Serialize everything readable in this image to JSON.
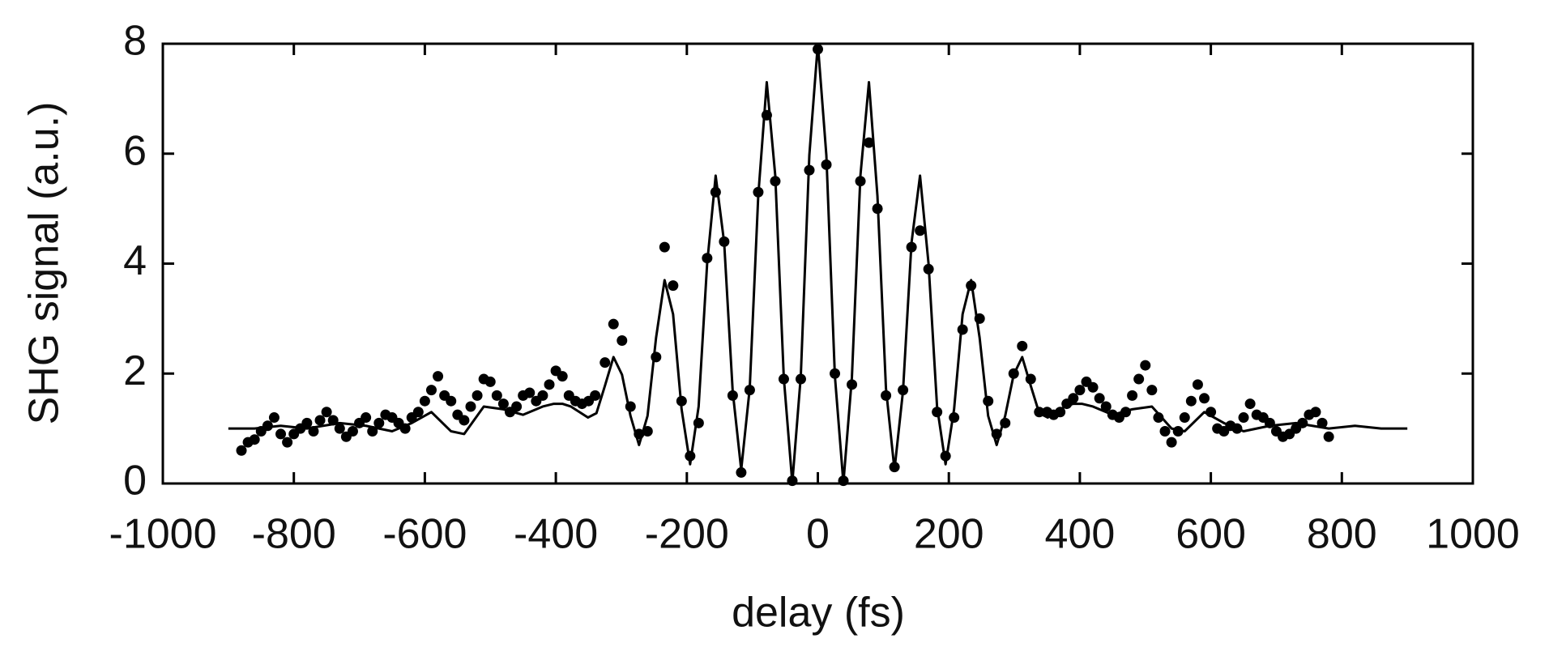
{
  "chart_data": {
    "type": "scatter",
    "x_label": "delay (fs)",
    "y_label": "SHG signal (a.u.)",
    "xlim": [
      -1000,
      1000
    ],
    "xticks": [
      -1000,
      -800,
      -600,
      -400,
      -200,
      0,
      200,
      400,
      600,
      800,
      1000
    ],
    "ylim": [
      0,
      8
    ],
    "yticks": [
      0,
      2,
      4,
      6,
      8
    ],
    "series": [
      {
        "type": "scatter",
        "color": "#000000",
        "x": [
          -880,
          -870,
          -860,
          -850,
          -840,
          -830,
          -820,
          -810,
          -800,
          -790,
          -780,
          -770,
          -760,
          -750,
          -740,
          -730,
          -720,
          -710,
          -700,
          -690,
          -680,
          -670,
          -660,
          -650,
          -640,
          -630,
          -620,
          -610,
          -600,
          -590,
          -580,
          -570,
          -560,
          -550,
          -540,
          -530,
          -520,
          -510,
          -500,
          -490,
          -480,
          -470,
          -460,
          -450,
          -440,
          -430,
          -420,
          -410,
          -400,
          -390,
          -380,
          -370,
          -360,
          -350,
          -340,
          -325,
          -312,
          -299,
          -286,
          -273,
          -260,
          -247,
          -234,
          -221,
          -208,
          -195,
          -182,
          -169,
          -156,
          -143,
          -130,
          -117,
          -104,
          -91,
          -78,
          -65,
          -52,
          -39,
          -26,
          -13,
          0,
          13,
          26,
          39,
          52,
          65,
          78,
          91,
          104,
          117,
          130,
          143,
          156,
          169,
          182,
          195,
          208,
          221,
          234,
          247,
          260,
          273,
          286,
          299,
          312,
          325,
          338,
          350,
          360,
          370,
          380,
          390,
          400,
          410,
          420,
          430,
          440,
          450,
          460,
          470,
          480,
          490,
          500,
          510,
          520,
          530,
          540,
          550,
          560,
          570,
          580,
          590,
          600,
          610,
          620,
          630,
          640,
          650,
          660,
          670,
          680,
          690,
          700,
          710,
          720,
          730,
          740,
          750,
          760,
          770,
          780
        ],
        "values": [
          0.6,
          0.75,
          0.8,
          0.95,
          1.05,
          1.2,
          0.9,
          0.75,
          0.9,
          1.0,
          1.1,
          0.95,
          1.15,
          1.3,
          1.15,
          1.0,
          0.85,
          0.95,
          1.1,
          1.2,
          0.95,
          1.1,
          1.25,
          1.2,
          1.1,
          1.0,
          1.2,
          1.3,
          1.5,
          1.7,
          1.95,
          1.6,
          1.5,
          1.25,
          1.15,
          1.4,
          1.6,
          1.9,
          1.85,
          1.6,
          1.45,
          1.3,
          1.4,
          1.6,
          1.65,
          1.5,
          1.6,
          1.8,
          2.05,
          1.95,
          1.6,
          1.5,
          1.45,
          1.5,
          1.6,
          2.2,
          2.9,
          2.6,
          1.4,
          0.9,
          0.95,
          2.3,
          4.3,
          3.6,
          1.5,
          0.5,
          1.1,
          4.1,
          5.3,
          4.4,
          1.6,
          0.2,
          1.7,
          5.3,
          6.7,
          5.5,
          1.9,
          0.05,
          1.9,
          5.7,
          7.9,
          5.8,
          2.0,
          0.05,
          1.8,
          5.5,
          6.2,
          5.0,
          1.6,
          0.3,
          1.7,
          4.3,
          4.6,
          3.9,
          1.3,
          0.5,
          1.2,
          2.8,
          3.6,
          3.0,
          1.5,
          0.9,
          1.1,
          2.0,
          2.5,
          1.9,
          1.3,
          1.3,
          1.25,
          1.3,
          1.45,
          1.55,
          1.7,
          1.85,
          1.75,
          1.55,
          1.4,
          1.25,
          1.2,
          1.3,
          1.6,
          1.9,
          2.15,
          1.7,
          1.2,
          0.95,
          0.75,
          0.95,
          1.2,
          1.5,
          1.8,
          1.55,
          1.3,
          1.0,
          0.95,
          1.05,
          1.0,
          1.2,
          1.45,
          1.25,
          1.2,
          1.1,
          0.95,
          0.85,
          0.9,
          1.0,
          1.1,
          1.25,
          1.3,
          1.1,
          0.85
        ]
      },
      {
        "type": "line",
        "color": "#000000",
        "x": [
          -900,
          -860,
          -820,
          -780,
          -730,
          -690,
          -650,
          -620,
          -590,
          -560,
          -540,
          -510,
          -480,
          -450,
          -420,
          -403,
          -390,
          -377,
          -364,
          -351,
          -338,
          -325,
          -312,
          -299,
          -286,
          -273,
          -260,
          -247,
          -234,
          -221,
          -208,
          -195,
          -182,
          -169,
          -156,
          -143,
          -130,
          -117,
          -104,
          -91,
          -78,
          -65,
          -52,
          -39,
          -26,
          -13,
          0,
          13,
          26,
          39,
          52,
          65,
          78,
          91,
          104,
          117,
          130,
          143,
          156,
          169,
          182,
          195,
          208,
          221,
          234,
          247,
          260,
          273,
          286,
          299,
          312,
          325,
          338,
          351,
          364,
          377,
          390,
          403,
          420,
          450,
          480,
          510,
          540,
          560,
          590,
          620,
          650,
          690,
          730,
          780,
          820,
          860,
          900
        ],
        "values": [
          1.0,
          1.0,
          1.05,
          1.0,
          1.1,
          1.05,
          0.95,
          1.1,
          1.3,
          0.95,
          0.9,
          1.4,
          1.35,
          1.25,
          1.4,
          1.45,
          1.45,
          1.4,
          1.3,
          1.2,
          1.28,
          1.78,
          2.3,
          1.98,
          1.23,
          0.7,
          1.23,
          2.65,
          3.7,
          3.08,
          1.35,
          0.35,
          1.4,
          4.0,
          5.6,
          4.38,
          1.68,
          0.25,
          1.73,
          5.23,
          7.3,
          5.6,
          1.93,
          0.01,
          1.96,
          5.97,
          8,
          5.97,
          1.96,
          0.01,
          1.93,
          5.6,
          7.3,
          5.23,
          1.73,
          0.25,
          1.68,
          4.38,
          5.6,
          4.0,
          1.4,
          0.35,
          1.35,
          3.08,
          3.7,
          2.65,
          1.23,
          0.7,
          1.23,
          1.98,
          2.3,
          1.78,
          1.28,
          1.2,
          1.3,
          1.4,
          1.45,
          1.45,
          1.4,
          1.25,
          1.35,
          1.4,
          1.0,
          0.95,
          1.3,
          1.1,
          0.95,
          1.05,
          1.1,
          1.0,
          1.05,
          1.0,
          1.0
        ]
      }
    ]
  }
}
